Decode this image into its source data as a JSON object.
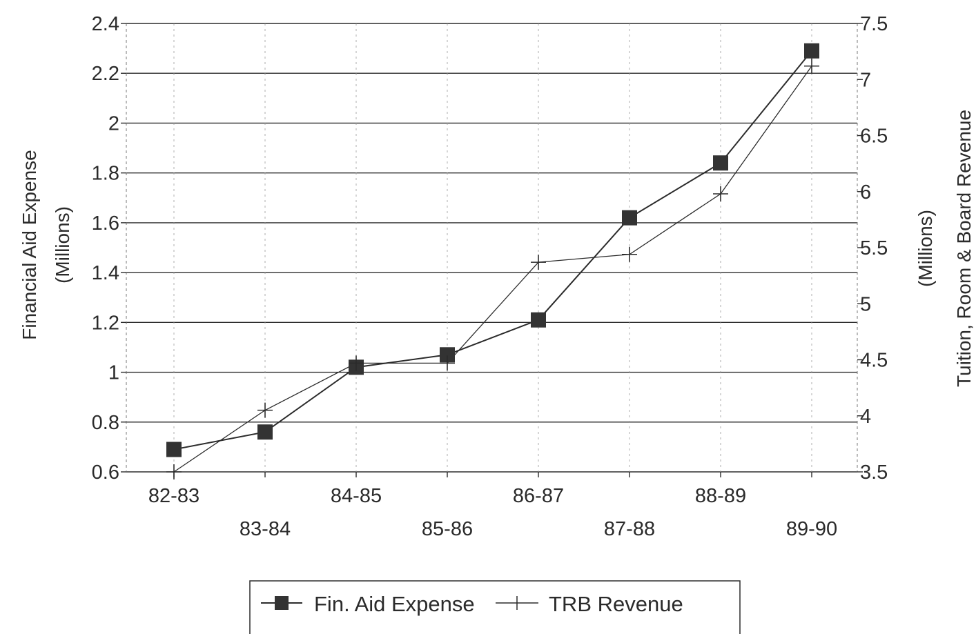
{
  "chart_data": {
    "type": "line",
    "categories": [
      "82-83",
      "83-84",
      "84-85",
      "85-86",
      "86-87",
      "87-88",
      "88-89",
      "89-90"
    ],
    "series": [
      {
        "name": "Fin. Aid Expense",
        "axis": "left",
        "marker": "square",
        "values": [
          0.69,
          0.76,
          1.02,
          1.07,
          1.21,
          1.62,
          1.84,
          2.29
        ]
      },
      {
        "name": "TRB Revenue",
        "axis": "right",
        "marker": "plus",
        "values": [
          3.5,
          4.05,
          4.47,
          4.47,
          5.37,
          5.44,
          5.98,
          7.12
        ]
      }
    ],
    "ylabel_left": [
      "Financial Aid Expense",
      "(Millions)"
    ],
    "ylabel_right": [
      "Tuition, Room & Board Revenue",
      "(Millions)"
    ],
    "ylim_left": [
      0.6,
      2.4
    ],
    "yticks_left": [
      "0.6",
      "0.8",
      "1",
      "1.2",
      "1.4",
      "1.6",
      "1.8",
      "2",
      "2.2",
      "2.4"
    ],
    "ylim_right": [
      3.5,
      7.5
    ],
    "yticks_right": [
      "3.5",
      "4",
      "4.5",
      "5",
      "5.5",
      "6",
      "6.5",
      "7",
      "7.5"
    ],
    "grid": true,
    "legend_position": "bottom",
    "colors": {
      "line": "#2b2b2b",
      "grid": "#2b2b2b",
      "marker": "#333333"
    }
  }
}
